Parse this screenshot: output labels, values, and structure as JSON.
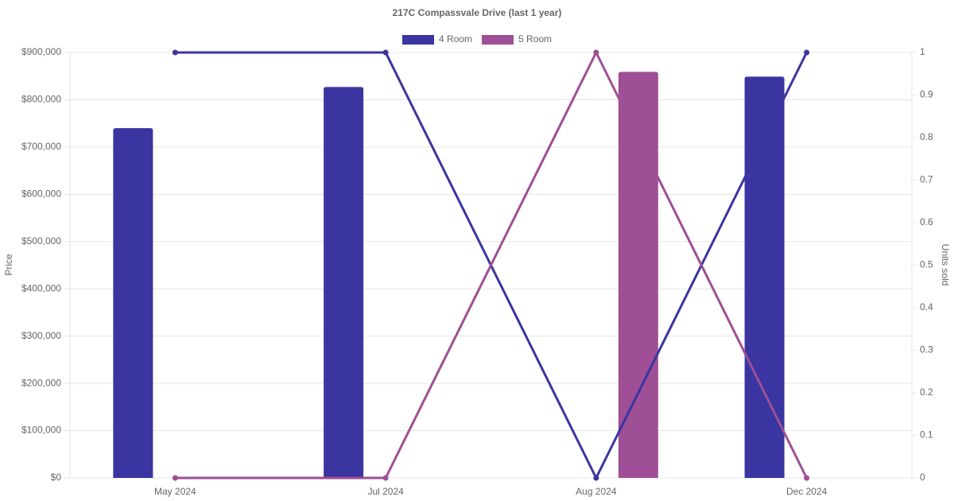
{
  "chart_data": {
    "type": "bar",
    "title": "217C Compassvale Drive (last 1 year)",
    "categories": [
      "May 2024",
      "Jul 2024",
      "Aug 2024",
      "Dec 2024"
    ],
    "y_label": "Price",
    "y2_label": "Units sold",
    "series": [
      {
        "name": "4 Room",
        "color": "#3a35a0",
        "values": [
          740000,
          827000,
          null,
          849000
        ],
        "y2_values": [
          1,
          1,
          0,
          1
        ]
      },
      {
        "name": "5 Room",
        "color": "#9e4f95",
        "values": [
          null,
          null,
          859000,
          null
        ],
        "y2_values": [
          0,
          0,
          1,
          0
        ]
      }
    ],
    "ylim": [
      0,
      900000
    ],
    "yticks": [
      {
        "value": 0,
        "label": "$0"
      },
      {
        "value": 100000,
        "label": "$100,000"
      },
      {
        "value": 200000,
        "label": "$200,000"
      },
      {
        "value": 300000,
        "label": "$300,000"
      },
      {
        "value": 400000,
        "label": "$400,000"
      },
      {
        "value": 500000,
        "label": "$500,000"
      },
      {
        "value": 600000,
        "label": "$600,000"
      },
      {
        "value": 700000,
        "label": "$700,000"
      },
      {
        "value": 800000,
        "label": "$800,000"
      },
      {
        "value": 900000,
        "label": "$900,000"
      }
    ],
    "y2lim": [
      0,
      1
    ],
    "y2ticks": [
      0,
      0.1,
      0.2,
      0.3,
      0.4,
      0.5,
      0.6,
      0.7,
      0.8,
      0.9,
      1
    ],
    "grid": true,
    "legend": "top"
  }
}
